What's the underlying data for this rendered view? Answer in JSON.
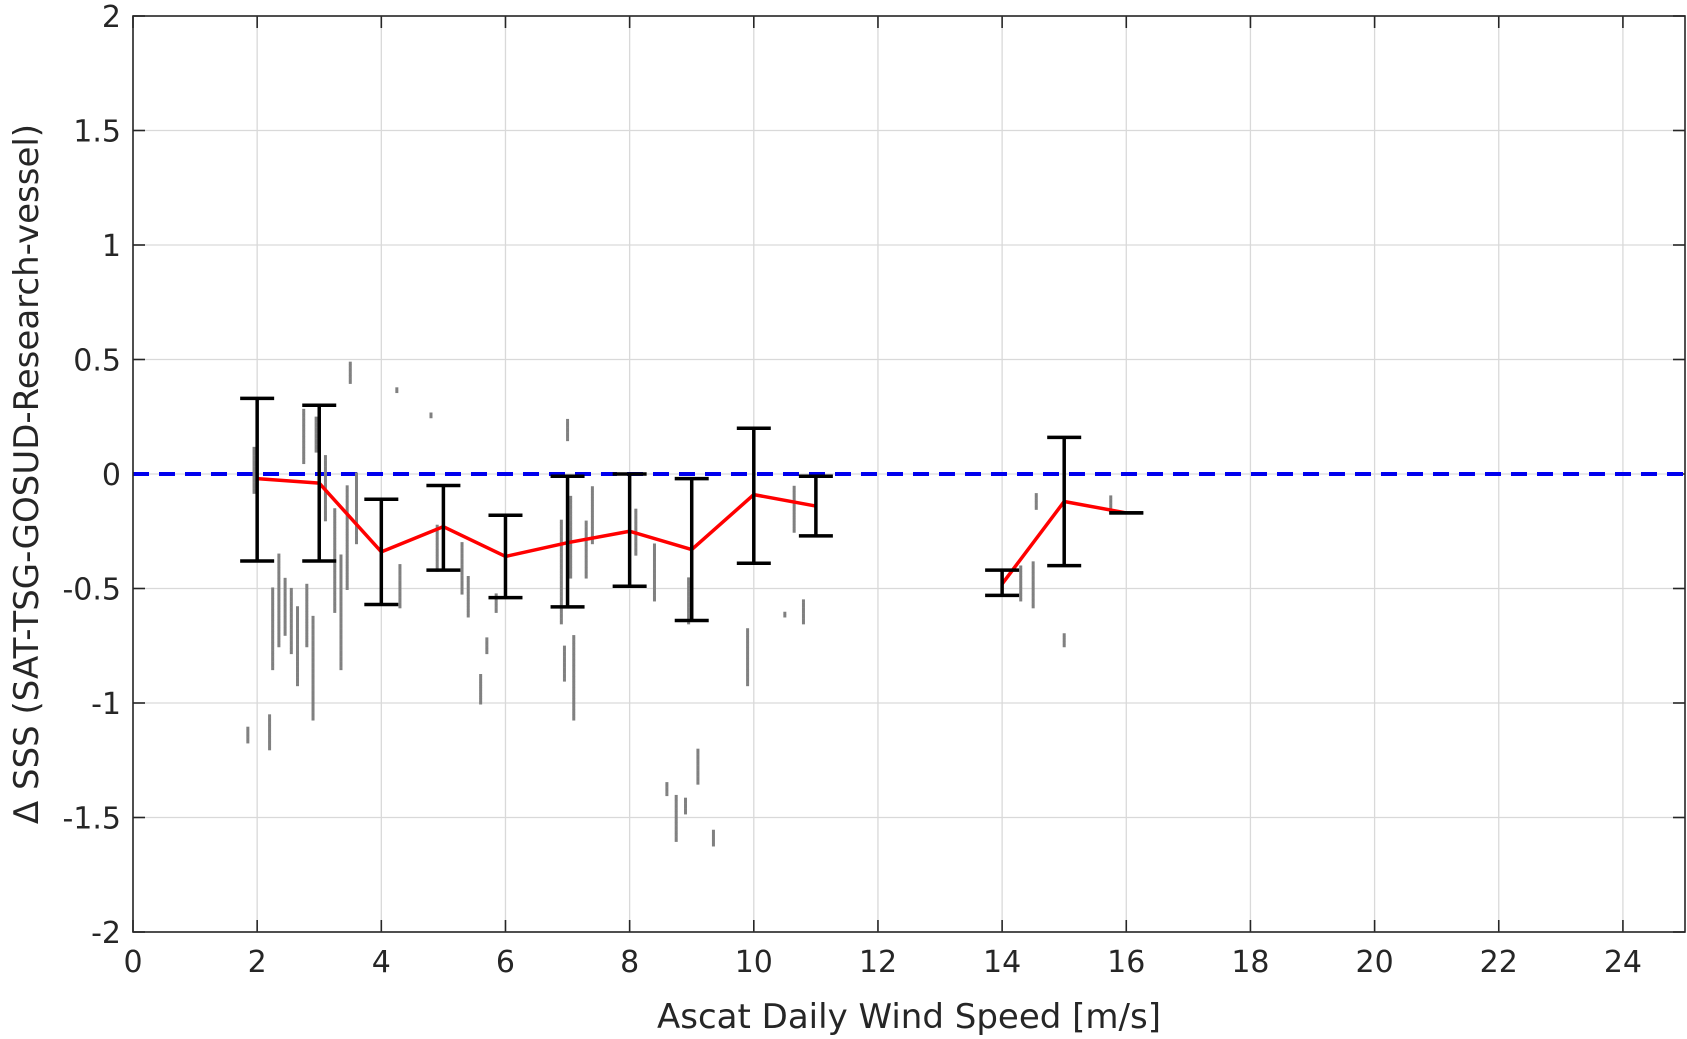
{
  "chart_data": {
    "type": "scatter",
    "title": "",
    "xlabel": "Ascat Daily Wind Speed [m/s]",
    "ylabel": "Δ SSS (SAT-TSG-GOSUD-Research-vessel)",
    "xlim": [
      0,
      25
    ],
    "ylim": [
      -2,
      2
    ],
    "xticks": [
      "0",
      "2",
      "4",
      "6",
      "8",
      "10",
      "12",
      "14",
      "16",
      "18",
      "20",
      "22",
      "24"
    ],
    "yticks": [
      "-2",
      "-1.5",
      "-1",
      "-0.5",
      "0",
      "0.5",
      "1",
      "1.5",
      "2"
    ],
    "grid": true,
    "reference_line": {
      "y": 0,
      "style": "dashed",
      "color": "#0000ee"
    },
    "scatter_color": "#808080",
    "mean_color": "#ff0000",
    "errorbar_color": "#000000",
    "scatter_clusters": [
      {
        "x": 1.85,
        "y": [
          -1.17,
          -1.1
        ]
      },
      {
        "x": 1.95,
        "y": [
          -0.08,
          0.12
        ]
      },
      {
        "x": 2.2,
        "y": [
          -1.2,
          -1.05
        ]
      },
      {
        "x": 2.25,
        "y": [
          -0.85,
          -0.5
        ]
      },
      {
        "x": 2.35,
        "y": [
          -0.75,
          -0.35
        ]
      },
      {
        "x": 2.45,
        "y": [
          -0.7,
          -0.45
        ]
      },
      {
        "x": 2.55,
        "y": [
          -0.78,
          -0.5
        ]
      },
      {
        "x": 2.65,
        "y": [
          -0.92,
          -0.58
        ]
      },
      {
        "x": 2.75,
        "y": [
          0.05,
          0.28
        ]
      },
      {
        "x": 2.8,
        "y": [
          -0.75,
          -0.48
        ]
      },
      {
        "x": 2.9,
        "y": [
          -1.07,
          -0.62
        ]
      },
      {
        "x": 2.95,
        "y": [
          0.1,
          0.25
        ]
      },
      {
        "x": 3.1,
        "y": [
          -0.2,
          0.08
        ]
      },
      {
        "x": 3.25,
        "y": [
          -0.6,
          -0.15
        ]
      },
      {
        "x": 3.35,
        "y": [
          -0.85,
          -0.35
        ]
      },
      {
        "x": 3.45,
        "y": [
          -0.5,
          -0.05
        ]
      },
      {
        "x": 3.5,
        "y": [
          0.4,
          0.49
        ]
      },
      {
        "x": 3.6,
        "y": [
          -0.3,
          0.0
        ]
      },
      {
        "x": 4.25,
        "y": [
          0.36,
          0.38
        ]
      },
      {
        "x": 4.3,
        "y": [
          -0.58,
          -0.4
        ]
      },
      {
        "x": 4.8,
        "y": [
          0.25,
          0.27
        ]
      },
      {
        "x": 4.9,
        "y": [
          -0.42,
          -0.22
        ]
      },
      {
        "x": 5.3,
        "y": [
          -0.52,
          -0.3
        ]
      },
      {
        "x": 5.4,
        "y": [
          -0.62,
          -0.45
        ]
      },
      {
        "x": 5.6,
        "y": [
          -1.0,
          -0.88
        ]
      },
      {
        "x": 5.7,
        "y": [
          -0.78,
          -0.72
        ]
      },
      {
        "x": 5.85,
        "y": [
          -0.6,
          -0.52
        ]
      },
      {
        "x": 6.9,
        "y": [
          -0.65,
          -0.2
        ]
      },
      {
        "x": 6.95,
        "y": [
          -0.9,
          -0.75
        ]
      },
      {
        "x": 7.0,
        "y": [
          0.15,
          0.24
        ]
      },
      {
        "x": 7.05,
        "y": [
          -0.45,
          -0.1
        ]
      },
      {
        "x": 7.1,
        "y": [
          -1.07,
          -0.7
        ]
      },
      {
        "x": 7.3,
        "y": [
          -0.45,
          -0.2
        ]
      },
      {
        "x": 7.4,
        "y": [
          -0.3,
          -0.05
        ]
      },
      {
        "x": 8.1,
        "y": [
          -0.35,
          -0.15
        ]
      },
      {
        "x": 8.4,
        "y": [
          -0.55,
          -0.3
        ]
      },
      {
        "x": 8.6,
        "y": [
          -1.4,
          -1.35
        ]
      },
      {
        "x": 8.75,
        "y": [
          -1.6,
          -1.4
        ]
      },
      {
        "x": 8.9,
        "y": [
          -1.48,
          -1.42
        ]
      },
      {
        "x": 8.95,
        "y": [
          -0.65,
          -0.45
        ]
      },
      {
        "x": 9.1,
        "y": [
          -1.35,
          -1.2
        ]
      },
      {
        "x": 9.35,
        "y": [
          -1.62,
          -1.55
        ]
      },
      {
        "x": 9.9,
        "y": [
          -0.92,
          -0.68
        ]
      },
      {
        "x": 10.5,
        "y": [
          -0.62,
          -0.6
        ]
      },
      {
        "x": 10.65,
        "y": [
          -0.25,
          -0.05
        ]
      },
      {
        "x": 10.8,
        "y": [
          -0.65,
          -0.55
        ]
      },
      {
        "x": 14.3,
        "y": [
          -0.55,
          -0.4
        ]
      },
      {
        "x": 14.5,
        "y": [
          -0.58,
          -0.38
        ]
      },
      {
        "x": 14.55,
        "y": [
          -0.15,
          -0.08
        ]
      },
      {
        "x": 15.0,
        "y": [
          -0.75,
          -0.7
        ]
      },
      {
        "x": 15.75,
        "y": [
          -0.16,
          -0.1
        ]
      }
    ],
    "series": [
      {
        "x": [
          2,
          3,
          4,
          5,
          6,
          7,
          8,
          9,
          10,
          11
        ],
        "mean": [
          -0.02,
          -0.04,
          -0.34,
          -0.23,
          -0.36,
          -0.3,
          -0.25,
          -0.33,
          -0.09,
          -0.14
        ],
        "lower": [
          -0.38,
          -0.38,
          -0.57,
          -0.42,
          -0.54,
          -0.58,
          -0.49,
          -0.64,
          -0.39,
          -0.27
        ],
        "upper": [
          0.33,
          0.3,
          -0.11,
          -0.05,
          -0.18,
          -0.01,
          0.0,
          -0.02,
          0.2,
          -0.01
        ]
      },
      {
        "x": [
          14,
          15,
          16
        ],
        "mean": [
          -0.48,
          -0.12,
          -0.17
        ],
        "lower": [
          -0.53,
          -0.4,
          -0.17
        ],
        "upper": [
          -0.42,
          0.16,
          -0.17
        ]
      }
    ]
  }
}
